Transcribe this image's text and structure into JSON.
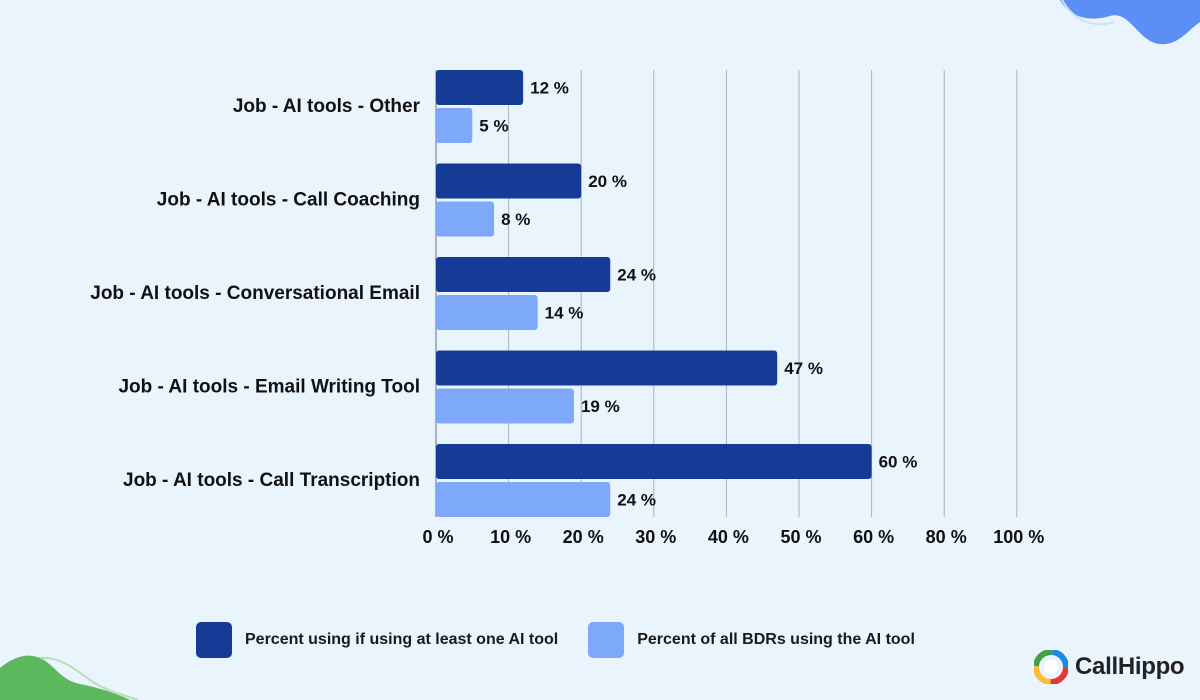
{
  "chart_data": {
    "type": "bar",
    "orientation": "horizontal",
    "categories": [
      "Job - AI tools - Other",
      "Job - AI tools - Call Coaching",
      "Job - AI tools - Conversational Email",
      "Job - AI tools - Email Writing Tool",
      "Job - AI tools - Call Transcription"
    ],
    "series": [
      {
        "name": "Percent using if using at least one AI tool",
        "values": [
          12,
          20,
          24,
          47,
          60
        ],
        "color": "#143c96"
      },
      {
        "name": "Percent of all BDRs using the AI tool",
        "values": [
          5,
          8,
          14,
          19,
          24
        ],
        "color": "#7ea9fb"
      }
    ],
    "value_labels": {
      "Percent using if using at least one AI tool": [
        "12 %",
        "20 %",
        "24 %",
        "47 %",
        "60 %"
      ],
      "Percent of all BDRs using the AI tool": [
        "5 %",
        "8 %",
        "14 %",
        "19 %",
        "24 %"
      ]
    },
    "x_ticks": [
      0,
      10,
      20,
      30,
      40,
      50,
      60,
      80,
      100
    ],
    "x_tick_labels": [
      "0 %",
      "10 %",
      "20 %",
      "30 %",
      "40 %",
      "50 %",
      "60 %",
      "80 %",
      "100 %"
    ],
    "grid": true,
    "legend_position": "bottom"
  },
  "legend": {
    "items": [
      {
        "label": "Percent using if using at least one AI tool",
        "color": "#143c96"
      },
      {
        "label": "Percent of all BDRs using the AI tool",
        "color": "#7ea9fb"
      }
    ]
  },
  "brand": {
    "name": "CallHippo"
  },
  "colors": {
    "background": "#eaf4fd",
    "decor_blue": "#5b8ff5",
    "decor_green": "#5cb85c"
  }
}
